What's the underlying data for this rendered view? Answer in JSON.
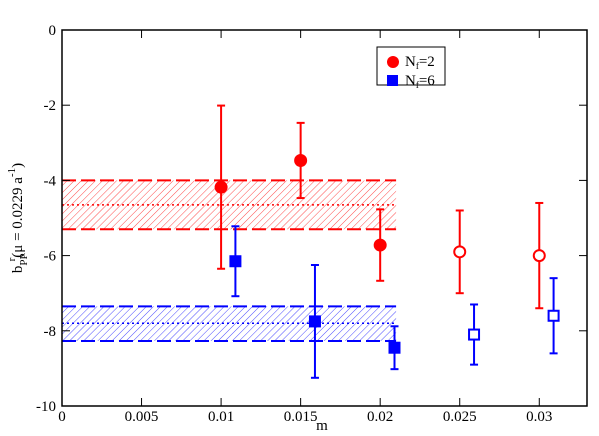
{
  "chart_data": {
    "type": "scatter",
    "xlabel": "m",
    "ylabel": {
      "main": "b",
      "subscript": "PP",
      "superscript": "r",
      "argument": "(μ = 0.0229 a",
      "argument_superscript": "-1",
      "close": ")"
    },
    "xlim": [
      0,
      0.033
    ],
    "ylim": [
      -10,
      0
    ],
    "xticks": [
      0,
      0.005,
      0.01,
      0.015,
      0.02,
      0.025,
      0.03
    ],
    "yticks": [
      0,
      -2,
      -4,
      -6,
      -8,
      -10
    ],
    "series": [
      {
        "name_parts": [
          "N",
          "f",
          "=2"
        ],
        "color": "#ff0000",
        "marker": "circle",
        "x": [
          0.01,
          0.015,
          0.02,
          0.025,
          0.03
        ],
        "values": [
          -4.18,
          -3.47,
          -5.72,
          -5.9,
          -6.0
        ],
        "errors": [
          2.17,
          1.0,
          0.95,
          1.1,
          1.4
        ],
        "filled": [
          true,
          true,
          true,
          false,
          false
        ]
      },
      {
        "name_parts": [
          "N",
          "f",
          "=6"
        ],
        "color": "#0000ff",
        "marker": "square",
        "x": [
          0.0109,
          0.0159,
          0.0209,
          0.0259,
          0.0309
        ],
        "values": [
          -6.15,
          -7.75,
          -8.45,
          -8.1,
          -7.6
        ],
        "errors": [
          0.93,
          1.5,
          0.57,
          0.8,
          1.0
        ],
        "filled": [
          true,
          true,
          true,
          false,
          false
        ]
      }
    ],
    "bands": [
      {
        "color": "#ff0000",
        "x": [
          0,
          0.021
        ],
        "center": -4.65,
        "lower": -5.3,
        "upper": -4.0
      },
      {
        "color": "#0000ff",
        "x": [
          0,
          0.021
        ],
        "center": -7.8,
        "lower": -8.27,
        "upper": -7.35
      }
    ]
  }
}
